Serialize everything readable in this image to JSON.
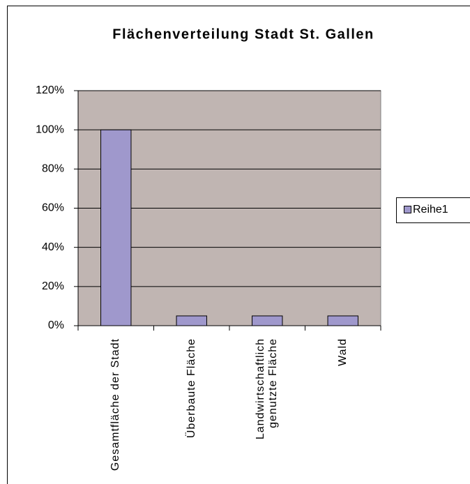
{
  "chart_data": {
    "type": "bar",
    "title": "Flächenverteilung Stadt St. Gallen",
    "categories": [
      "Gesamtfläche der Stadt",
      "Überbaute Fläche",
      "Landwirtschaftlich genutzte Fläche",
      "Wald"
    ],
    "series": [
      {
        "name": "Reihe1",
        "color": "#9f98cc",
        "values": [
          100,
          5,
          5,
          5
        ]
      }
    ],
    "ylim": [
      0,
      120
    ],
    "yticks": [
      {
        "value": 0,
        "label": "0%"
      },
      {
        "value": 20,
        "label": "20%"
      },
      {
        "value": 40,
        "label": "40%"
      },
      {
        "value": 60,
        "label": "60%"
      },
      {
        "value": 80,
        "label": "80%"
      },
      {
        "value": 100,
        "label": "100%"
      },
      {
        "value": 120,
        "label": "120%"
      }
    ],
    "grid": true,
    "legend": "right",
    "plot_background": "#c0b5b2"
  }
}
